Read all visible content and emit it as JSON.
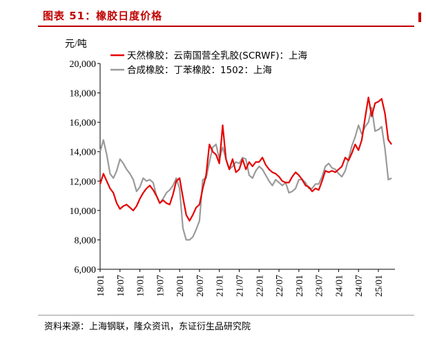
{
  "figure": {
    "title": "图表 51：橡胶日度价格",
    "source": "资料来源：上海钢联，隆众资讯，东证衍生品研究院",
    "title_color": "#c00000"
  },
  "chart_data": {
    "type": "line",
    "ylabel": "元/吨",
    "ylim": [
      6000,
      20000
    ],
    "yticks": [
      6000,
      8000,
      10000,
      12000,
      14000,
      16000,
      18000,
      20000
    ],
    "ytick_labels": [
      "6,000",
      "8,000",
      "10,000",
      "12,000",
      "14,000",
      "16,000",
      "18,000",
      "20,000"
    ],
    "xlim": [
      "2018-01",
      "2025-06"
    ],
    "xtick_labels": [
      "18/01",
      "18/07",
      "19/01",
      "19/07",
      "20/01",
      "20/07",
      "21/01",
      "21/07",
      "22/01",
      "22/07",
      "23/01",
      "23/07",
      "24/01",
      "24/07",
      "25/01"
    ],
    "legend_position": "top-left",
    "grid": false,
    "series": [
      {
        "name": "天然橡胶：云南国营全乳胶(SCRWF)：上海",
        "color": "#e60000",
        "points": [
          [
            "2018-01",
            11800
          ],
          [
            "2018-02",
            12500
          ],
          [
            "2018-03",
            12000
          ],
          [
            "2018-04",
            11500
          ],
          [
            "2018-05",
            11200
          ],
          [
            "2018-06",
            10500
          ],
          [
            "2018-07",
            10100
          ],
          [
            "2018-08",
            10300
          ],
          [
            "2018-09",
            10400
          ],
          [
            "2018-10",
            10200
          ],
          [
            "2018-11",
            10000
          ],
          [
            "2018-12",
            10300
          ],
          [
            "2019-01",
            10800
          ],
          [
            "2019-02",
            11200
          ],
          [
            "2019-03",
            11500
          ],
          [
            "2019-04",
            11700
          ],
          [
            "2019-05",
            11400
          ],
          [
            "2019-06",
            11000
          ],
          [
            "2019-07",
            10500
          ],
          [
            "2019-08",
            10700
          ],
          [
            "2019-09",
            10500
          ],
          [
            "2019-10",
            10400
          ],
          [
            "2019-11",
            11100
          ],
          [
            "2019-12",
            12000
          ],
          [
            "2020-01",
            12200
          ],
          [
            "2020-02",
            10900
          ],
          [
            "2020-03",
            9700
          ],
          [
            "2020-04",
            9300
          ],
          [
            "2020-05",
            9700
          ],
          [
            "2020-06",
            10200
          ],
          [
            "2020-07",
            10400
          ],
          [
            "2020-08",
            11500
          ],
          [
            "2020-09",
            12400
          ],
          [
            "2020-10",
            14500
          ],
          [
            "2020-11",
            14000
          ],
          [
            "2020-12",
            13800
          ],
          [
            "2021-01",
            13200
          ],
          [
            "2021-02",
            15800
          ],
          [
            "2021-03",
            13500
          ],
          [
            "2021-04",
            12800
          ],
          [
            "2021-05",
            13500
          ],
          [
            "2021-06",
            12600
          ],
          [
            "2021-07",
            12800
          ],
          [
            "2021-08",
            13500
          ],
          [
            "2021-09",
            12800
          ],
          [
            "2021-10",
            13300
          ],
          [
            "2021-11",
            13000
          ],
          [
            "2021-12",
            13300
          ],
          [
            "2022-01",
            13300
          ],
          [
            "2022-02",
            13600
          ],
          [
            "2022-03",
            13100
          ],
          [
            "2022-04",
            12800
          ],
          [
            "2022-05",
            12600
          ],
          [
            "2022-06",
            12500
          ],
          [
            "2022-07",
            12300
          ],
          [
            "2022-08",
            12000
          ],
          [
            "2022-09",
            11900
          ],
          [
            "2022-10",
            11900
          ],
          [
            "2022-11",
            12300
          ],
          [
            "2022-12",
            12600
          ],
          [
            "2023-01",
            12400
          ],
          [
            "2023-02",
            12100
          ],
          [
            "2023-03",
            11700
          ],
          [
            "2023-04",
            11600
          ],
          [
            "2023-05",
            11300
          ],
          [
            "2023-06",
            11500
          ],
          [
            "2023-07",
            11400
          ],
          [
            "2023-08",
            12000
          ],
          [
            "2023-09",
            12700
          ],
          [
            "2023-10",
            12600
          ],
          [
            "2023-11",
            12700
          ],
          [
            "2023-12",
            12600
          ],
          [
            "2024-01",
            12800
          ],
          [
            "2024-02",
            13000
          ],
          [
            "2024-03",
            13600
          ],
          [
            "2024-04",
            13400
          ],
          [
            "2024-05",
            13900
          ],
          [
            "2024-06",
            14500
          ],
          [
            "2024-07",
            14100
          ],
          [
            "2024-08",
            14800
          ],
          [
            "2024-09",
            16300
          ],
          [
            "2024-10",
            17700
          ],
          [
            "2024-11",
            16400
          ],
          [
            "2024-12",
            17300
          ],
          [
            "2025-01",
            17400
          ],
          [
            "2025-02",
            17600
          ],
          [
            "2025-03",
            16600
          ],
          [
            "2025-04",
            14800
          ],
          [
            "2025-05",
            14500
          ]
        ]
      },
      {
        "name": "合成橡胶：丁苯橡胶：1502：上海",
        "color": "#9a9a9a",
        "points": [
          [
            "2018-01",
            14000
          ],
          [
            "2018-02",
            14800
          ],
          [
            "2018-03",
            13800
          ],
          [
            "2018-04",
            12500
          ],
          [
            "2018-05",
            12200
          ],
          [
            "2018-06",
            12700
          ],
          [
            "2018-07",
            13500
          ],
          [
            "2018-08",
            13200
          ],
          [
            "2018-09",
            12800
          ],
          [
            "2018-10",
            12500
          ],
          [
            "2018-11",
            12100
          ],
          [
            "2018-12",
            11300
          ],
          [
            "2019-01",
            11600
          ],
          [
            "2019-02",
            12200
          ],
          [
            "2019-03",
            12000
          ],
          [
            "2019-04",
            12100
          ],
          [
            "2019-05",
            11900
          ],
          [
            "2019-06",
            11000
          ],
          [
            "2019-07",
            10500
          ],
          [
            "2019-08",
            10800
          ],
          [
            "2019-09",
            11200
          ],
          [
            "2019-10",
            11400
          ],
          [
            "2019-11",
            11700
          ],
          [
            "2019-12",
            12200
          ],
          [
            "2020-01",
            11500
          ],
          [
            "2020-02",
            8800
          ],
          [
            "2020-03",
            8000
          ],
          [
            "2020-04",
            8000
          ],
          [
            "2020-05",
            8200
          ],
          [
            "2020-06",
            8700
          ],
          [
            "2020-07",
            9300
          ],
          [
            "2020-08",
            12100
          ],
          [
            "2020-09",
            12200
          ],
          [
            "2020-10",
            13300
          ],
          [
            "2020-11",
            14300
          ],
          [
            "2020-12",
            14500
          ],
          [
            "2021-01",
            13500
          ],
          [
            "2021-02",
            14300
          ],
          [
            "2021-03",
            13500
          ],
          [
            "2021-04",
            12800
          ],
          [
            "2021-05",
            13000
          ],
          [
            "2021-06",
            13300
          ],
          [
            "2021-07",
            13200
          ],
          [
            "2021-08",
            13600
          ],
          [
            "2021-09",
            13500
          ],
          [
            "2021-10",
            12400
          ],
          [
            "2021-11",
            12200
          ],
          [
            "2021-12",
            12700
          ],
          [
            "2022-01",
            13000
          ],
          [
            "2022-02",
            12800
          ],
          [
            "2022-03",
            12400
          ],
          [
            "2022-04",
            12000
          ],
          [
            "2022-05",
            11700
          ],
          [
            "2022-06",
            12100
          ],
          [
            "2022-07",
            11900
          ],
          [
            "2022-08",
            11700
          ],
          [
            "2022-09",
            11900
          ],
          [
            "2022-10",
            11200
          ],
          [
            "2022-11",
            11300
          ],
          [
            "2022-12",
            11500
          ],
          [
            "2023-01",
            12100
          ],
          [
            "2023-02",
            12100
          ],
          [
            "2023-03",
            11900
          ],
          [
            "2023-04",
            11500
          ],
          [
            "2023-05",
            11500
          ],
          [
            "2023-06",
            11800
          ],
          [
            "2023-07",
            11800
          ],
          [
            "2023-08",
            12300
          ],
          [
            "2023-09",
            13000
          ],
          [
            "2023-10",
            13200
          ],
          [
            "2023-11",
            12900
          ],
          [
            "2023-12",
            12800
          ],
          [
            "2024-01",
            12500
          ],
          [
            "2024-02",
            12300
          ],
          [
            "2024-03",
            12700
          ],
          [
            "2024-04",
            13500
          ],
          [
            "2024-05",
            14400
          ],
          [
            "2024-06",
            15000
          ],
          [
            "2024-07",
            15800
          ],
          [
            "2024-08",
            15200
          ],
          [
            "2024-09",
            15700
          ],
          [
            "2024-10",
            16000
          ],
          [
            "2024-11",
            17000
          ],
          [
            "2024-12",
            15400
          ],
          [
            "2025-01",
            15500
          ],
          [
            "2025-02",
            15700
          ],
          [
            "2025-03",
            14200
          ],
          [
            "2025-04",
            12100
          ],
          [
            "2025-05",
            12200
          ]
        ]
      }
    ]
  }
}
